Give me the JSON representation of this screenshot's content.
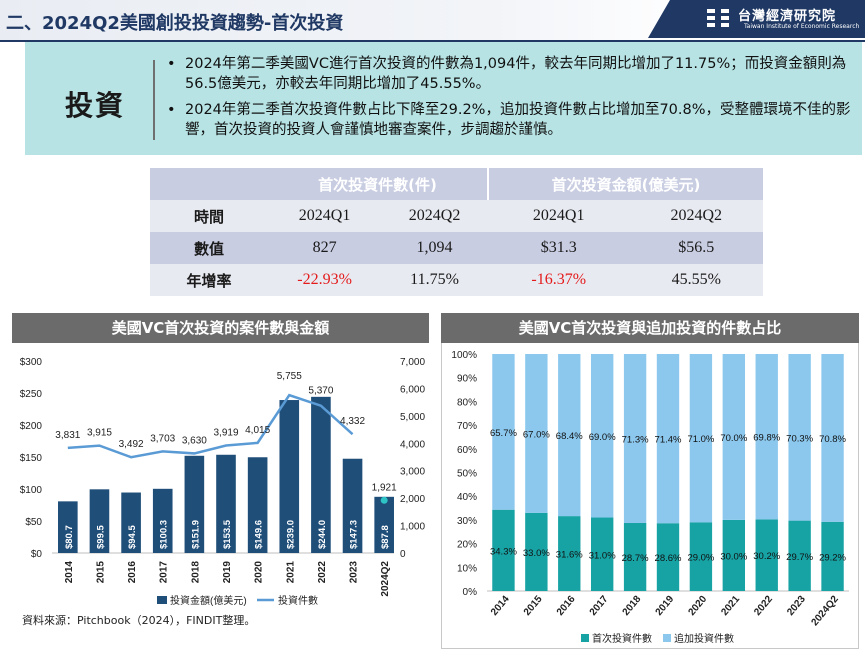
{
  "header": {
    "title": "二、2024Q2美國創投投資趨勢-首次投資",
    "logo_zh": "台灣經濟研究院",
    "logo_en": "Taiwan Institute of Economic Research"
  },
  "summary": {
    "label": "投資",
    "bullets": [
      "2024年第二季美國VC進行首次投資的件數為1,094件，較去年同期比增加了11.75%；而投資金額則為56.5億美元，亦較去年同期比增加了45.55%。",
      "2024年第二季首次投資件數占比下降至29.2%，追加投資件數占比增加至70.8%，受整體環境不佳的影響，首次投資的投資人會謹慎地審查案件，步調趨於謹慎。"
    ],
    "bullet_symbol": "•"
  },
  "table": {
    "group_headers": [
      "首次投資件數(件)",
      "首次投資金額(億美元)"
    ],
    "rows": [
      {
        "label": "時間",
        "cells": [
          "2024Q1",
          "2024Q2",
          "2024Q1",
          "2024Q2"
        ]
      },
      {
        "label": "數值",
        "cells": [
          "827",
          "1,094",
          "$31.3",
          "$56.5"
        ]
      },
      {
        "label": "年增率",
        "cells": [
          "-22.93%",
          "11.75%",
          "-16.37%",
          "45.55%"
        ]
      }
    ]
  },
  "source": "資料來源：Pitchbook（2024），FINDIT整理。",
  "chart_data": [
    {
      "type": "bar",
      "title": "美國VC首次投資的案件數與金額",
      "categories": [
        "2014",
        "2015",
        "2016",
        "2017",
        "2018",
        "2019",
        "2020",
        "2021",
        "2022",
        "2023",
        "2024Q2"
      ],
      "series": [
        {
          "name": "投資金額(億美元)",
          "type": "bar",
          "axis": "left",
          "color": "#1f4e79",
          "values": [
            80.7,
            99.5,
            94.5,
            100.3,
            151.9,
            153.5,
            149.6,
            239.0,
            244.0,
            147.3,
            87.8
          ],
          "labels": [
            "$80.7",
            "$99.5",
            "$94.5",
            "$100.3",
            "$151.9",
            "$153.5",
            "$149.6",
            "$239.0",
            "$244.0",
            "$147.3",
            "$87.8"
          ]
        },
        {
          "name": "投資件數",
          "type": "line",
          "axis": "right",
          "color": "#5b9bd5",
          "values": [
            3831,
            3915,
            3492,
            3703,
            3630,
            3919,
            4015,
            5755,
            5370,
            4332,
            1921
          ],
          "labels": [
            "3,831",
            "3,915",
            "3,492",
            "3,703",
            "3,630",
            "3,919",
            "4,015",
            "5,755",
            "5,370",
            "4,332",
            "1,921"
          ]
        }
      ],
      "left_axis": {
        "ylim": [
          0,
          300
        ],
        "ticks": [
          "$0",
          "$50",
          "$100",
          "$150",
          "$200",
          "$250",
          "$300"
        ]
      },
      "right_axis": {
        "ylim": [
          0,
          7000
        ],
        "ticks": [
          "0",
          "1,000",
          "2,000",
          "3,000",
          "4,000",
          "5,000",
          "6,000",
          "7,000"
        ]
      },
      "legend": "bottom",
      "grid": false
    },
    {
      "type": "bar",
      "stacked": true,
      "title": "美國VC首次投資與追加投資的件數占比",
      "categories": [
        "2014",
        "2015",
        "2016",
        "2017",
        "2018",
        "2019",
        "2020",
        "2021",
        "2022",
        "2023",
        "2024Q2"
      ],
      "series": [
        {
          "name": "首次投資件數",
          "color": "#17a2a4",
          "values": [
            34.3,
            33.0,
            31.6,
            31.0,
            28.7,
            28.6,
            29.0,
            30.0,
            30.2,
            29.7,
            29.2
          ],
          "labels": [
            "34.3%",
            "33.0%",
            "31.6%",
            "31.0%",
            "28.7%",
            "28.6%",
            "29.0%",
            "30.0%",
            "30.2%",
            "29.7%",
            "29.2%"
          ]
        },
        {
          "name": "追加投資件數",
          "color": "#8cc8ee",
          "values": [
            65.7,
            67.0,
            68.4,
            69.0,
            71.3,
            71.4,
            71.0,
            70.0,
            69.8,
            70.3,
            70.8
          ],
          "labels": [
            "65.7%",
            "67.0%",
            "68.4%",
            "69.0%",
            "71.3%",
            "71.4%",
            "71.0%",
            "70.0%",
            "69.8%",
            "70.3%",
            "70.8%"
          ]
        }
      ],
      "y_axis": {
        "ylim": [
          0,
          100
        ],
        "ticks": [
          "0%",
          "10%",
          "20%",
          "30%",
          "40%",
          "50%",
          "60%",
          "70%",
          "80%",
          "90%",
          "100%"
        ]
      },
      "legend": "bottom",
      "grid": false
    }
  ]
}
